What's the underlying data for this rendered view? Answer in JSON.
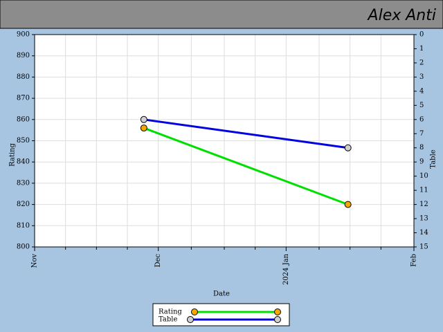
{
  "chart_data": {
    "type": "line",
    "title": "Alex Anti",
    "x_label": "Date",
    "y_label": "Rating",
    "y2_label": "Table",
    "x": [
      26.5,
      76
    ],
    "xlim": [
      0,
      92
    ],
    "xticks": [
      {
        "value": 0,
        "label": "Nov"
      },
      {
        "value": 30,
        "label": "Dec"
      },
      {
        "value": 61,
        "label": "2024 Jan"
      },
      {
        "value": 92,
        "label": "Feb"
      }
    ],
    "xminorticks": [
      7.5,
      15,
      22.5,
      38,
      46,
      53.5,
      69,
      76.5,
      84
    ],
    "ylim": [
      800,
      900
    ],
    "yticks": [
      800,
      810,
      820,
      830,
      840,
      850,
      860,
      870,
      880,
      890,
      900
    ],
    "y2lim": [
      15,
      0
    ],
    "y2ticks": [
      0,
      1,
      2,
      3,
      4,
      5,
      6,
      7,
      8,
      9,
      10,
      11,
      12,
      13,
      14,
      15
    ],
    "grid": true,
    "series": [
      {
        "name": "Rating",
        "color": "#00e000",
        "marker_color": "#f5a800",
        "values": [
          856,
          820
        ]
      },
      {
        "name": "Table",
        "color": "#0000e0",
        "marker_color": "#d0d0d0",
        "values": [
          6,
          8
        ],
        "axis": "y2"
      }
    ]
  }
}
